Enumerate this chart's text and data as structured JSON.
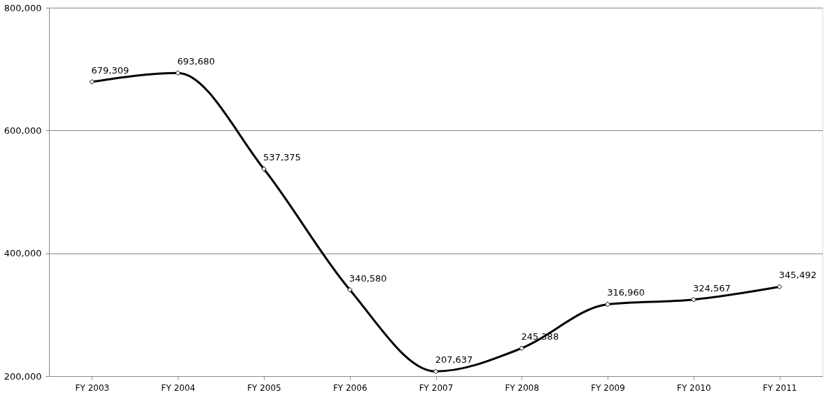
{
  "chart_data": {
    "type": "line",
    "categories": [
      "FY 2003",
      "FY 2004",
      "FY 2005",
      "FY 2006",
      "FY 2007",
      "FY 2008",
      "FY 2009",
      "FY 2010",
      "FY 2011"
    ],
    "series": [
      {
        "color": "#000000",
        "values": [
          679309,
          693680,
          537375,
          340580,
          207637,
          245388,
          316960,
          324567,
          345492
        ],
        "value_labels": [
          "679,309",
          "693,680",
          "537,375",
          "340,580",
          "207,637",
          "245,388",
          "316,960",
          "324,567",
          "345,492"
        ]
      }
    ],
    "ylim": [
      200000,
      800000
    ],
    "yticks": [
      {
        "value": 200000,
        "label": "200,000"
      },
      {
        "value": 400000,
        "label": "400,000"
      },
      {
        "value": 600000,
        "label": "600,000"
      },
      {
        "value": 800000,
        "label": "800,000"
      }
    ],
    "grid": "y",
    "marker": "diamond",
    "line_style": "solid",
    "legend": false
  }
}
